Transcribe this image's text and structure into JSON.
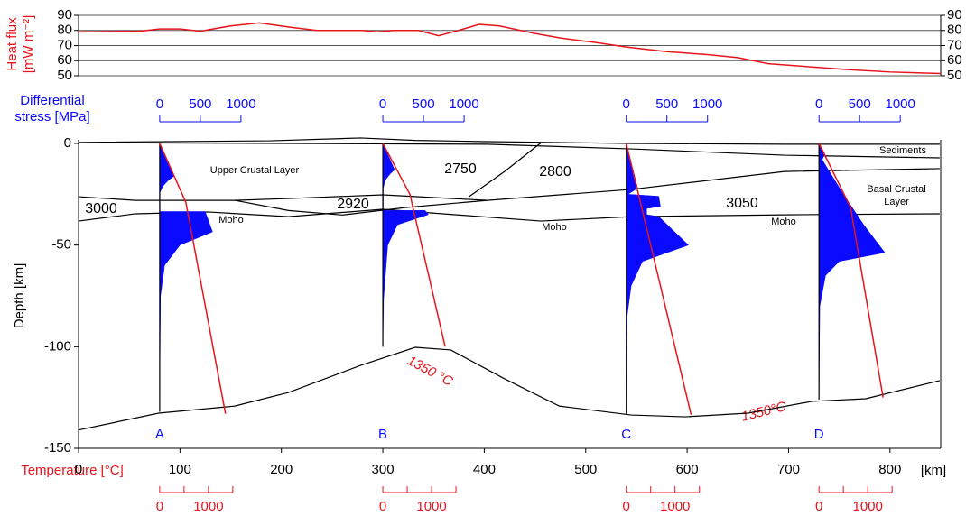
{
  "chart_data": [
    {
      "type": "line",
      "ylabel": [
        "Heat flux",
        "[mW m⁻²]"
      ],
      "color": "#e8141b",
      "x": [
        0,
        60,
        80,
        100,
        120,
        150,
        178,
        210,
        235,
        280,
        295,
        310,
        335,
        355,
        372,
        395,
        415,
        450,
        475,
        510,
        540,
        580,
        620,
        650,
        680,
        720,
        760,
        800,
        850
      ],
      "values": [
        79,
        79.5,
        81,
        81,
        79.5,
        83,
        85,
        82,
        80,
        80,
        79,
        80,
        80,
        76.5,
        79.5,
        84,
        83,
        78,
        75,
        72,
        69,
        66,
        64,
        62,
        58,
        56,
        54,
        52.5,
        51.5
      ],
      "xlim": [
        0,
        850
      ],
      "ylim": [
        50,
        90
      ],
      "yticks": [
        50,
        60,
        70,
        80,
        90
      ],
      "grid": true
    },
    {
      "type": "section",
      "xlabel": "[km]",
      "ylabel": "Depth [km]",
      "xlim": [
        0,
        850
      ],
      "ylim": [
        -150,
        0
      ],
      "xticks": [
        0,
        100,
        200,
        300,
        400,
        500,
        600,
        700,
        800
      ],
      "yticks": [
        0,
        -50,
        -100,
        -150
      ],
      "boundary_color": "#000000",
      "boundaries": [
        {
          "x": [
            0,
            189,
            278,
            332,
            403,
            545,
            696,
            849
          ],
          "y": [
            0.5,
            1.3,
            2.7,
            1.5,
            0.9,
            0,
            -0.4,
            -0.4
          ]
        },
        {
          "x": [
            0,
            403,
            545,
            696,
            849
          ],
          "y": [
            0.4,
            -0.4,
            -2.7,
            -5.8,
            -7.1
          ]
        },
        {
          "x": [
            0,
            56,
            154,
            207,
            300,
            403,
            545,
            696,
            849
          ],
          "y": [
            -26.2,
            -28,
            -28,
            -27.1,
            -25.3,
            -28,
            -22.6,
            -13.8,
            -12.4
          ]
        },
        {
          "x": [
            0,
            56,
            127,
            207,
            300,
            456,
            545,
            696,
            849
          ],
          "y": [
            -38.2,
            -34.6,
            -33.7,
            -36,
            -32.4,
            -38.2,
            -36,
            -35.1,
            -34.6
          ]
        },
        {
          "x": [
            154,
            207,
            260,
            323,
            403
          ],
          "y": [
            -28,
            -33,
            -35.2,
            -31.5,
            -28
          ]
        },
        {
          "x": [
            385,
            420,
            456
          ],
          "y": [
            -26.2,
            -13.8,
            0.4
          ]
        },
        {
          "x": [
            0,
            79,
            154,
            207,
            278,
            332,
            367,
            420,
            474,
            545,
            598,
            660,
            723,
            776,
            849
          ],
          "y": [
            -141,
            -132.7,
            -129.2,
            -122.5,
            -109.2,
            -100.3,
            -101.6,
            -115.8,
            -129.2,
            -133.6,
            -134.5,
            -132.7,
            -126.9,
            -125.6,
            -116.7
          ]
        }
      ],
      "annotations": [
        "Sediments",
        "Upper Crustal Layer",
        "2750",
        "2800",
        "3000",
        "2920",
        "3050",
        "Basal Crustal",
        "Layer",
        "Moho",
        "Moho",
        "Moho",
        "1350 °C",
        "1350°C"
      ],
      "stress_label": [
        "Differential",
        "stress [MPa]"
      ],
      "stress_ticks": [
        0,
        500,
        1000
      ],
      "stress_color": "#0a0aff",
      "temperature_label": "Temperature [°C]",
      "temperature_ticks": [
        0,
        1000
      ],
      "temperature_minor_ticks": [
        500,
        1500
      ],
      "temperature_color": "#e8141b",
      "profiles": [
        {
          "name": "A",
          "x": 80,
          "envelope": {
            "depth": [
              0,
              -16,
              -18,
              -21,
              -24,
              -33.5,
              -33.5,
              -43.5,
              -50,
              -60,
              -75,
              -132
            ],
            "stress": [
              0,
              180,
              110,
              40,
              5,
              5,
              560,
              650,
              250,
              60,
              10,
              0
            ]
          },
          "geotherm": {
            "depth": [
              0,
              -29,
              -133
            ],
            "temperature": [
              0,
              537,
              1350
            ]
          }
        },
        {
          "name": "B",
          "x": 300,
          "envelope": {
            "depth": [
              0,
              -13,
              -15,
              -18,
              -22,
              -33,
              -33,
              -35,
              -40,
              -50,
              -76,
              -100
            ],
            "stress": [
              0,
              145,
              90,
              30,
              5,
              5,
              520,
              560,
              180,
              60,
              10,
              0
            ]
          },
          "geotherm": {
            "depth": [
              0,
              -25,
              -100
            ],
            "temperature": [
              0,
              555,
              1278
            ]
          }
        },
        {
          "name": "C",
          "x": 540,
          "envelope": {
            "depth": [
              0,
              -22,
              -24,
              -25,
              -26,
              -31,
              -32,
              -35,
              -36,
              -50,
              -58,
              -70,
              -85,
              -133
            ],
            "stress": [
              0,
              140,
              60,
              20,
              400,
              420,
              250,
              250,
              400,
              765,
              200,
              60,
              10,
              0
            ]
          },
          "geotherm": {
            "depth": [
              0,
              -63,
              -133.5
            ],
            "temperature": [
              0,
              630,
              1330
            ]
          }
        },
        {
          "name": "D",
          "x": 730,
          "envelope": {
            "depth": [
              0,
              -5,
              -8,
              -12,
              -25,
              -40,
              -53.7,
              -58,
              -65,
              -80,
              -126
            ],
            "stress": [
              0,
              70,
              40,
              100,
              300,
              550,
              810,
              250,
              80,
              10,
              0
            ]
          },
          "geotherm": {
            "depth": [
              0,
              -31.5,
              -125
            ],
            "temperature": [
              0,
              648,
              1315
            ]
          }
        }
      ]
    }
  ]
}
